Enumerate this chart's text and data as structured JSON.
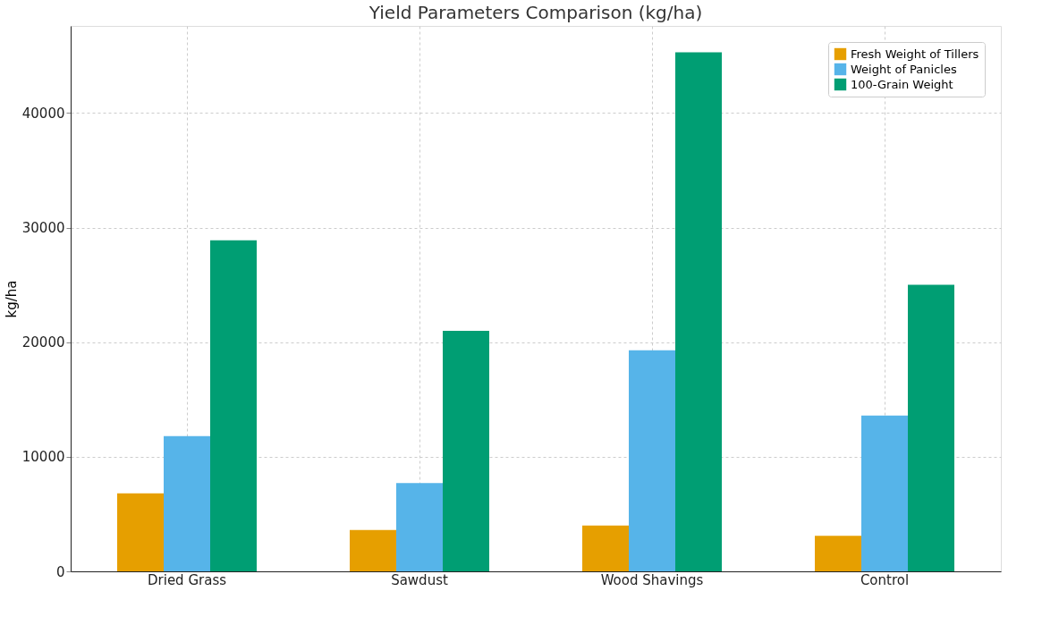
{
  "chart_data": {
    "type": "bar",
    "title": "Yield Parameters Comparison (kg/ha)",
    "ylabel": "kg/ha",
    "categories": [
      "Dried Grass",
      "Sawdust",
      "Wood Shavings",
      "Control"
    ],
    "series": [
      {
        "name": "Fresh Weight of Tillers",
        "color": "#e69f00",
        "values": [
          6800,
          3600,
          4000,
          3100
        ]
      },
      {
        "name": "Weight of Panicles",
        "color": "#56b4e9",
        "values": [
          11800,
          7700,
          19300,
          13600
        ]
      },
      {
        "name": "100-Grain Weight",
        "color": "#009e73",
        "values": [
          28900,
          21000,
          45300,
          25000
        ]
      }
    ],
    "ylim": [
      0,
      47600
    ],
    "yticks": [
      0,
      10000,
      20000,
      30000,
      40000
    ],
    "grid": true,
    "legend": "top right"
  }
}
